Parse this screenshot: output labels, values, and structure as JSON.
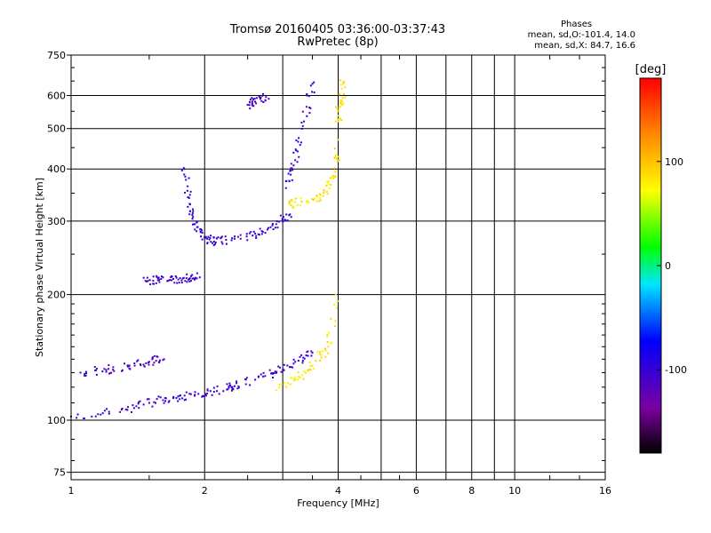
{
  "chart_data": {
    "type": "scatter",
    "title": "Tromsø 20160405 03:36:00-03:37:43",
    "subtitle": "RwPretec (8p)",
    "xlabel": "Frequency [MHz]",
    "ylabel": "Stationary phase Virtual Height [km]",
    "x_scale": "log",
    "y_scale": "log",
    "xlim": [
      1,
      16
    ],
    "ylim": [
      72,
      750
    ],
    "x_ticks": [
      1,
      2,
      4,
      6,
      8,
      10,
      16
    ],
    "x_tick_labels": [
      "1",
      "2",
      "4",
      "6",
      "8",
      "10",
      "16"
    ],
    "y_ticks": [
      75,
      100,
      200,
      300,
      400,
      500,
      600,
      750
    ],
    "y_tick_labels": [
      "75",
      "100",
      "200",
      "300",
      "400",
      "500",
      "600",
      "750"
    ],
    "grid": true,
    "phase_info": {
      "heading": "Phases",
      "line_o": "mean, sd,O:-101.4, 14.0",
      "line_x": "mean, sd,X:  84.7, 16.6"
    },
    "colorbar": {
      "unit_label": "[deg]",
      "range": [
        -180,
        180
      ],
      "ticks": [
        100,
        0,
        -100
      ],
      "tick_labels": [
        "100",
        "0",
        "-100"
      ],
      "colormap": "rainbow (black-purple-blue-cyan-green-yellow-red)"
    },
    "series": [
      {
        "traces": [
          {
            "x": [
              1.0,
              1.3,
              1.5,
              1.7,
              1.9,
              2.1,
              2.3,
              2.6,
              2.9,
              3.2,
              3.5
            ],
            "y": [
              102,
              106,
              110,
              113,
              115,
              117,
              120,
              125,
              130,
              138,
              145
            ],
            "phase": -105
          },
          {
            "x": [
              1.05,
              1.2,
              1.35,
              1.5,
              1.62
            ],
            "y": [
              130,
              132,
              135,
              138,
              140
            ],
            "phase": -110
          },
          {
            "x": [
              1.48,
              1.58,
              1.7,
              1.82,
              1.95
            ],
            "y": [
              215,
              217,
              218,
              219,
              220
            ],
            "phase": -105
          },
          {
            "x": [
              1.8,
              1.85,
              1.9,
              2.0,
              2.1,
              2.3,
              2.6,
              2.9,
              3.1
            ],
            "y": [
              400,
              330,
              295,
              275,
              268,
              270,
              280,
              295,
              310
            ],
            "phase": -100
          },
          {
            "x": [
              3.05,
              3.2,
              3.35,
              3.5
            ],
            "y": [
              360,
              420,
              520,
              640
            ],
            "phase": -100
          },
          {
            "x": [
              3.1,
              3.4,
              3.7,
              3.9,
              4.0
            ],
            "y": [
              330,
              335,
              345,
              380,
              470
            ],
            "phase": 85
          },
          {
            "x": [
              4.0,
              4.05,
              4.1
            ],
            "y": [
              520,
              580,
              640
            ],
            "phase": 85
          },
          {
            "x": [
              2.9,
              3.2,
              3.5,
              3.8,
              3.95
            ],
            "y": [
              118,
              125,
              135,
              150,
              200
            ],
            "phase": 80
          },
          {
            "x": [
              2.5,
              2.6,
              2.75
            ],
            "y": [
              570,
              580,
              595
            ],
            "phase": -110
          }
        ]
      }
    ]
  }
}
